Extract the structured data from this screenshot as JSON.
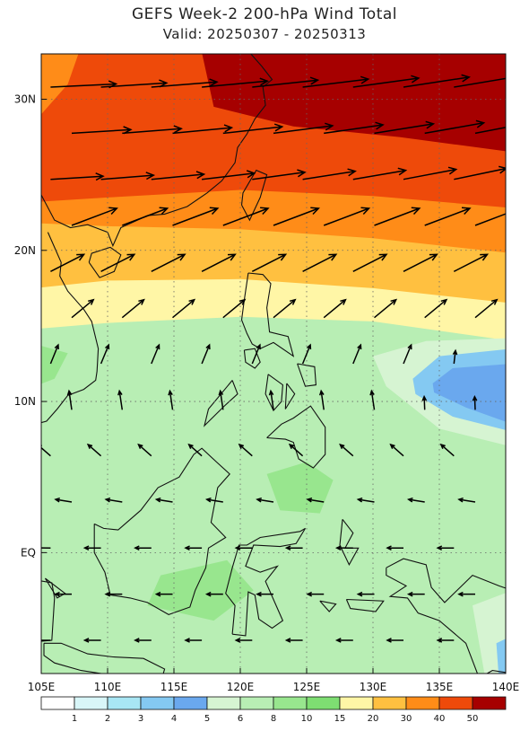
{
  "title": "GEFS Week-2 200-hPa Wind Total",
  "subtitle": "Valid: 20250307 - 20250313",
  "map": {
    "lon_range": [
      105,
      140
    ],
    "lat_range": [
      -8,
      33
    ],
    "lon_ticks": [
      {
        "value": 105,
        "label": "105E"
      },
      {
        "value": 110,
        "label": "110E"
      },
      {
        "value": 115,
        "label": "115E"
      },
      {
        "value": 120,
        "label": "120E"
      },
      {
        "value": 125,
        "label": "125E"
      },
      {
        "value": 130,
        "label": "130E"
      },
      {
        "value": 135,
        "label": "135E"
      },
      {
        "value": 140,
        "label": "140E"
      }
    ],
    "lat_ticks": [
      {
        "value": 30,
        "label": "30N"
      },
      {
        "value": 20,
        "label": "20N"
      },
      {
        "value": 10,
        "label": "10N"
      },
      {
        "value": 0,
        "label": "EQ"
      }
    ],
    "grid": "dotted"
  },
  "colorbar": {
    "labels": [
      "1",
      "2",
      "3",
      "4",
      "5",
      "6",
      "8",
      "10",
      "15",
      "20",
      "30",
      "40",
      "50"
    ],
    "colors": [
      "#ffffff",
      "#d8f6f8",
      "#a8e6f4",
      "#84c9f2",
      "#6aa8ee",
      "#d6f4d2",
      "#b8eeb4",
      "#98e68e",
      "#7ede72",
      "#fff6a6",
      "#ffc040",
      "#ff8c18",
      "#ee4a0a",
      "#a60000"
    ]
  }
}
